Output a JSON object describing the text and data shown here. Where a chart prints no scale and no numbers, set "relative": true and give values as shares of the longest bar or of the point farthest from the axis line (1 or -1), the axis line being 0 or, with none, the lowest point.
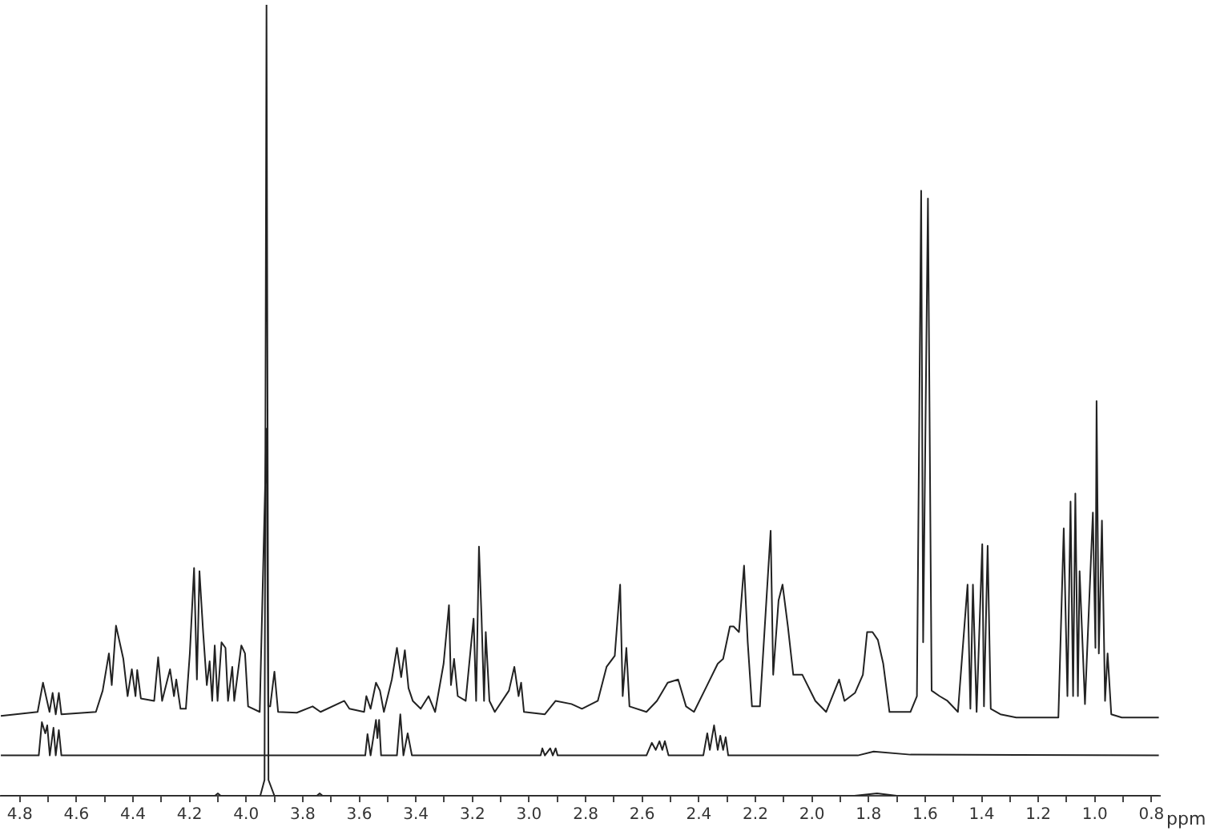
{
  "chart_data": {
    "type": "line",
    "relative": true,
    "xlabel": "ppm",
    "legend": false,
    "grid": false,
    "marker": "none",
    "line_style": "solid",
    "xlim": [
      4.87,
      0.77
    ],
    "xticks": [
      4.8,
      {
        "value": 4.7,
        "label": null
      },
      4.6,
      {
        "value": 4.5,
        "label": null
      },
      4.4,
      {
        "value": 4.3,
        "label": null
      },
      4.2,
      {
        "value": 4.1,
        "label": null
      },
      {
        "value": 4,
        "label": "4.0"
      },
      {
        "value": 3.9,
        "label": null
      },
      3.8,
      {
        "value": 3.7,
        "label": null
      },
      3.6,
      {
        "value": 3.5,
        "label": null
      },
      3.4,
      {
        "value": 3.3,
        "label": null
      },
      3.2,
      {
        "value": 3.1,
        "label": null
      },
      {
        "value": 3,
        "label": "3.0"
      },
      {
        "value": 2.9,
        "label": null
      },
      2.8,
      {
        "value": 2.7,
        "label": null
      },
      2.6,
      {
        "value": 2.5,
        "label": null
      },
      2.4,
      {
        "value": 2.3,
        "label": null
      },
      2.2,
      {
        "value": 2.1,
        "label": null
      },
      {
        "value": 2,
        "label": "2.0"
      },
      {
        "value": 1.9,
        "label": null
      },
      1.8,
      {
        "value": 1.7,
        "label": null
      },
      1.6,
      {
        "value": 1.5,
        "label": null
      },
      1.4,
      {
        "value": 1.3,
        "label": null
      },
      1.2,
      {
        "value": 1.1,
        "label": null
      },
      {
        "value": 1,
        "label": "1.0"
      },
      {
        "value": 0.9,
        "label": null
      },
      0.8
    ],
    "series": [
      {
        "color": "#222222",
        "x": [
          4.867,
          4.737,
          4.718,
          4.695,
          4.684,
          4.673,
          4.662,
          4.653,
          4.531,
          4.507,
          4.485,
          4.475,
          4.46,
          4.447,
          4.434,
          4.419,
          4.404,
          4.391,
          4.385,
          4.372,
          4.325,
          4.311,
          4.297,
          4.269,
          4.255,
          4.247,
          4.232,
          4.213,
          4.199,
          4.184,
          4.174,
          4.165,
          4.152,
          4.139,
          4.129,
          4.12,
          4.111,
          4.101,
          4.087,
          4.073,
          4.064,
          4.049,
          4.042,
          4.017,
          4.004,
          3.993,
          3.952,
          3.928,
          3.922,
          3.915,
          3.9,
          3.887,
          3.821,
          3.765,
          3.737,
          3.653,
          3.635,
          3.583,
          3.575,
          3.56,
          3.541,
          3.527,
          3.513,
          3.485,
          3.467,
          3.452,
          3.439,
          3.426,
          3.411,
          3.383,
          3.355,
          3.332,
          3.302,
          3.283,
          3.276,
          3.265,
          3.252,
          3.224,
          3.196,
          3.187,
          3.177,
          3.168,
          3.159,
          3.153,
          3.14,
          3.121,
          3.071,
          3.052,
          3.037,
          3.028,
          3.018,
          2.944,
          2.906,
          2.85,
          2.813,
          2.757,
          2.726,
          2.697,
          2.678,
          2.669,
          2.656,
          2.645,
          2.585,
          2.548,
          2.51,
          2.473,
          2.445,
          2.417,
          2.37,
          2.333,
          2.314,
          2.29,
          2.277,
          2.258,
          2.24,
          2.227,
          2.212,
          2.184,
          2.146,
          2.137,
          2.118,
          2.104,
          2.085,
          2.066,
          2.034,
          1.988,
          1.95,
          1.904,
          1.885,
          1.848,
          1.82,
          1.805,
          1.786,
          1.767,
          1.748,
          1.726,
          1.652,
          1.629,
          1.614,
          1.607,
          1.59,
          1.577,
          1.549,
          1.521,
          1.484,
          1.45,
          1.44,
          1.431,
          1.418,
          1.398,
          1.392,
          1.379,
          1.368,
          1.334,
          1.278,
          1.129,
          1.11,
          1.097,
          1.086,
          1.077,
          1.069,
          1.06,
          1.054,
          1.035,
          1.007,
          0.998,
          0.994,
          0.986,
          0.975,
          0.964,
          0.955,
          0.942,
          0.905,
          0.774
        ],
        "values": [
          0.101,
          0.106,
          0.143,
          0.106,
          0.13,
          0.103,
          0.13,
          0.103,
          0.106,
          0.133,
          0.18,
          0.14,
          0.215,
          0.194,
          0.173,
          0.126,
          0.16,
          0.126,
          0.159,
          0.123,
          0.12,
          0.175,
          0.12,
          0.16,
          0.126,
          0.147,
          0.11,
          0.11,
          0.18,
          0.288,
          0.147,
          0.284,
          0.207,
          0.14,
          0.17,
          0.12,
          0.19,
          0.12,
          0.194,
          0.187,
          0.12,
          0.163,
          0.12,
          0.19,
          0.18,
          0.113,
          0.106,
          0.464,
          0.113,
          0.113,
          0.157,
          0.106,
          0.105,
          0.113,
          0.106,
          0.12,
          0.11,
          0.106,
          0.126,
          0.11,
          0.143,
          0.133,
          0.106,
          0.147,
          0.187,
          0.15,
          0.184,
          0.136,
          0.12,
          0.11,
          0.126,
          0.106,
          0.167,
          0.241,
          0.14,
          0.173,
          0.126,
          0.12,
          0.224,
          0.12,
          0.315,
          0.227,
          0.12,
          0.207,
          0.12,
          0.106,
          0.133,
          0.163,
          0.126,
          0.143,
          0.106,
          0.103,
          0.12,
          0.116,
          0.11,
          0.12,
          0.163,
          0.177,
          0.267,
          0.126,
          0.187,
          0.113,
          0.106,
          0.12,
          0.143,
          0.147,
          0.113,
          0.106,
          0.14,
          0.167,
          0.173,
          0.214,
          0.214,
          0.207,
          0.291,
          0.194,
          0.113,
          0.113,
          0.335,
          0.153,
          0.247,
          0.267,
          0.214,
          0.153,
          0.153,
          0.12,
          0.106,
          0.147,
          0.12,
          0.13,
          0.153,
          0.207,
          0.207,
          0.197,
          0.167,
          0.106,
          0.106,
          0.126,
          0.765,
          0.194,
          0.755,
          0.133,
          0.126,
          0.12,
          0.106,
          0.267,
          0.11,
          0.267,
          0.106,
          0.318,
          0.113,
          0.316,
          0.11,
          0.103,
          0.099,
          0.099,
          0.338,
          0.126,
          0.372,
          0.126,
          0.382,
          0.126,
          0.284,
          0.116,
          0.358,
          0.187,
          0.499,
          0.18,
          0.348,
          0.12,
          0.18,
          0.103,
          0.099,
          0.099
        ]
      },
      {
        "color": "#222222",
        "x": [
          4.867,
          4.733,
          4.722,
          4.71,
          4.703,
          4.694,
          4.681,
          4.673,
          4.662,
          4.653,
          3.579,
          3.571,
          3.56,
          3.541,
          3.536,
          3.53,
          3.523,
          3.467,
          3.455,
          3.444,
          3.429,
          3.414,
          2.959,
          2.953,
          2.944,
          2.925,
          2.916,
          2.906,
          2.899,
          2.585,
          2.566,
          2.552,
          2.539,
          2.529,
          2.52,
          2.507,
          2.384,
          2.37,
          2.361,
          2.346,
          2.333,
          2.324,
          2.314,
          2.305,
          2.296,
          1.838,
          1.782,
          1.652,
          0.774
        ],
        "values": [
          0.051,
          0.051,
          0.093,
          0.079,
          0.089,
          0.051,
          0.086,
          0.051,
          0.083,
          0.051,
          0.051,
          0.078,
          0.051,
          0.096,
          0.073,
          0.096,
          0.051,
          0.051,
          0.103,
          0.051,
          0.079,
          0.051,
          0.051,
          0.06,
          0.051,
          0.06,
          0.051,
          0.06,
          0.051,
          0.051,
          0.067,
          0.058,
          0.069,
          0.058,
          0.069,
          0.051,
          0.051,
          0.079,
          0.058,
          0.089,
          0.058,
          0.076,
          0.058,
          0.074,
          0.051,
          0.051,
          0.056,
          0.052,
          0.051
        ]
      },
      {
        "color": "#222222",
        "x": [
          4.867,
          4.11,
          4.1,
          4.09,
          3.95,
          3.935,
          3.928,
          3.921,
          3.9,
          3.75,
          3.74,
          3.73,
          1.85,
          1.77,
          1.7,
          0.774
        ],
        "values": [
          0,
          0,
          0.003,
          0,
          0,
          0.02,
          1,
          0.02,
          0,
          0,
          0.003,
          0,
          0,
          0.003,
          0,
          0
        ]
      }
    ]
  }
}
